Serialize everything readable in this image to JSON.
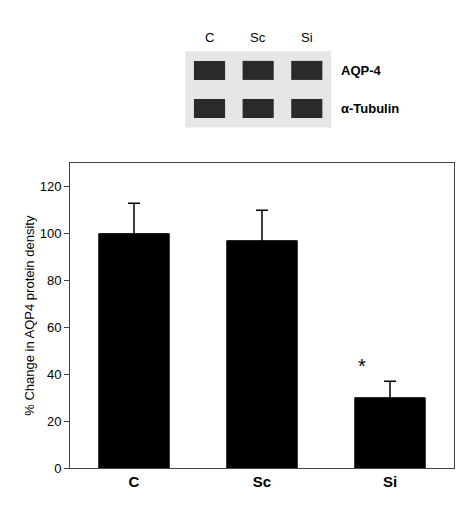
{
  "chart_data": {
    "type": "bar",
    "categories": [
      "C",
      "Sc",
      "Si"
    ],
    "values": [
      100,
      97,
      30
    ],
    "errors": [
      13,
      13,
      7
    ],
    "color": "#000000",
    "ylabel": "% Change in AQP4 protein density",
    "ylim": [
      0,
      130
    ],
    "yticks": [
      0,
      20,
      40,
      60,
      80,
      100,
      120
    ],
    "grid": false,
    "annotations": [
      {
        "text": "*",
        "category": "Si",
        "y": 38
      }
    ],
    "blot": {
      "lanes": [
        "C",
        "Sc",
        "Si"
      ],
      "bands": [
        "AQP-4",
        "α-Tubulin"
      ]
    }
  }
}
